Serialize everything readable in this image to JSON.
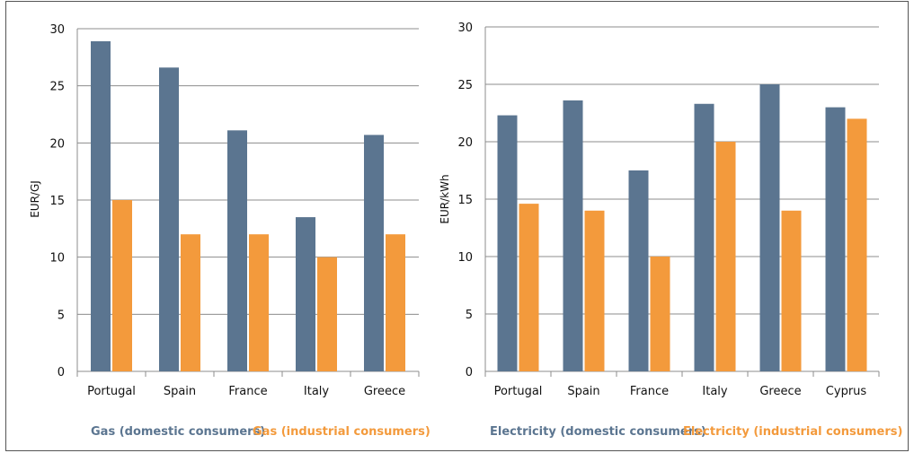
{
  "colors": {
    "domestic": "#5b7590",
    "industrial": "#f39a3c",
    "grid": "#8c8c8c"
  },
  "chart_data": [
    {
      "type": "bar",
      "categories": [
        "Portugal",
        "Spain",
        "France",
        "Italy",
        "Greece"
      ],
      "series": [
        {
          "name": "Gas (domestic consumers)",
          "values": [
            28.9,
            26.6,
            21.1,
            13.5,
            20.7
          ]
        },
        {
          "name": "Gas (industrial consumers)",
          "values": [
            15.0,
            12.0,
            12.0,
            10.0,
            12.0
          ]
        }
      ],
      "ylabel": "EUR/GJ",
      "xlabel": "",
      "ylim": [
        0,
        30
      ],
      "yticks": [
        0,
        5,
        10,
        15,
        20,
        25,
        30
      ],
      "grid": true,
      "legend_position": "bottom"
    },
    {
      "type": "bar",
      "categories": [
        "Portugal",
        "Spain",
        "France",
        "Italy",
        "Greece",
        "Cyprus"
      ],
      "series": [
        {
          "name": "Electricity (domestic consumers)",
          "values": [
            22.3,
            23.6,
            17.5,
            23.3,
            25.0,
            23.0
          ]
        },
        {
          "name": "Electricity (industrial consumers)",
          "values": [
            14.6,
            14.0,
            10.0,
            20.0,
            14.0,
            22.0
          ]
        }
      ],
      "ylabel": "EUR/kWh",
      "xlabel": "",
      "ylim": [
        0,
        30
      ],
      "yticks": [
        0,
        5,
        10,
        15,
        20,
        25,
        30
      ],
      "grid": true,
      "legend_position": "bottom"
    }
  ]
}
